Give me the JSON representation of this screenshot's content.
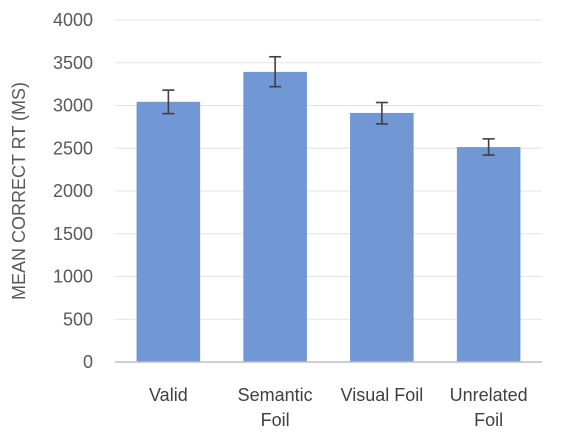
{
  "chart_data": {
    "type": "bar",
    "title": "",
    "xlabel": "",
    "ylabel": "MEAN CORRECT RT (MS)",
    "ylim": [
      0,
      4000
    ],
    "yticks": [
      0,
      500,
      1000,
      1500,
      2000,
      2500,
      3000,
      3500,
      4000
    ],
    "grid": true,
    "legend": "none",
    "categories": [
      [
        "Valid"
      ],
      [
        "Semantic",
        "Foil"
      ],
      [
        "Visual Foil"
      ],
      [
        "Unrelated",
        "Foil"
      ]
    ],
    "values": [
      3040,
      3390,
      2910,
      2510
    ],
    "error_low": [
      2905,
      3220,
      2785,
      2420
    ],
    "error_high": [
      3180,
      3570,
      3035,
      2610
    ],
    "colors": {
      "bar": "#7197d4",
      "bar_stroke": "#6a8fcb",
      "grid": "#e3e3e3",
      "axis": "#bfbfbf",
      "error_bar": "#404040"
    }
  }
}
